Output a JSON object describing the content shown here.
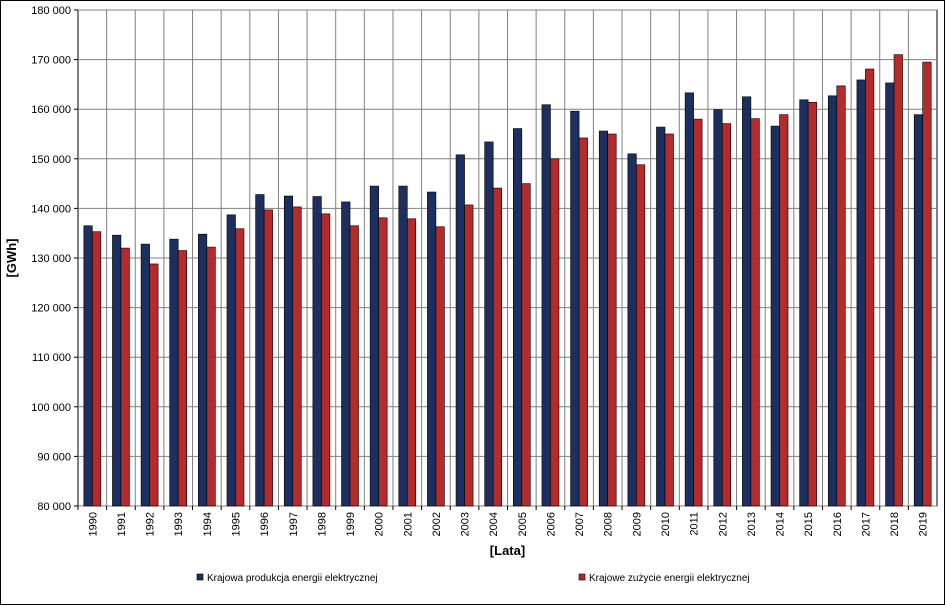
{
  "chart_data": {
    "type": "bar",
    "title": "",
    "xlabel": "[Lata]",
    "ylabel": "[GWh]",
    "ylim": [
      80000,
      180000
    ],
    "ytick_step": 10000,
    "grid": true,
    "legend_position": "bottom",
    "categories": [
      "1990",
      "1991",
      "1992",
      "1993",
      "1994",
      "1995",
      "1996",
      "1997",
      "1998",
      "1999",
      "2000",
      "2001",
      "2002",
      "2003",
      "2004",
      "2005",
      "2006",
      "2007",
      "2008",
      "2009",
      "2010",
      "2011",
      "2012",
      "2013",
      "2014",
      "2015",
      "2016",
      "2017",
      "2018",
      "2019"
    ],
    "series": [
      {
        "name": "Krajowa produkcja energii elektrycznej",
        "color": "#1c2f5e",
        "values": [
          136500,
          134600,
          132800,
          133800,
          134800,
          138700,
          142800,
          142500,
          142400,
          141300,
          144500,
          144500,
          143300,
          150800,
          153400,
          156100,
          160900,
          159600,
          155600,
          151000,
          156400,
          163300,
          159900,
          162500,
          156600,
          161900,
          162700,
          165900,
          165300,
          158900
        ]
      },
      {
        "name": "Krajowe zużycie energii elektrycznej",
        "color": "#b52a2a",
        "values": [
          135300,
          132000,
          128800,
          131500,
          132200,
          135900,
          139700,
          140300,
          138900,
          136500,
          138100,
          137900,
          136300,
          140700,
          144100,
          145000,
          150000,
          154200,
          155000,
          148800,
          155000,
          158000,
          157100,
          158100,
          158900,
          161400,
          164700,
          168100,
          171000,
          169500
        ]
      }
    ]
  }
}
